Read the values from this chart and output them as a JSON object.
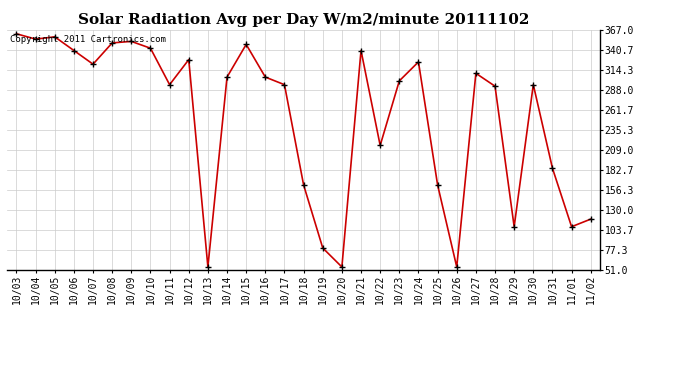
{
  "title": "Solar Radiation Avg per Day W/m2/minute 20111102",
  "copyright_text": "Copyright 2011 Cartronics.com",
  "labels": [
    "10/03",
    "10/04",
    "10/05",
    "10/06",
    "10/07",
    "10/08",
    "10/09",
    "10/10",
    "10/11",
    "10/12",
    "10/13",
    "10/14",
    "10/15",
    "10/16",
    "10/17",
    "10/18",
    "10/19",
    "10/20",
    "10/21",
    "10/22",
    "10/23",
    "10/24",
    "10/25",
    "10/26",
    "10/27",
    "10/28",
    "10/29",
    "10/30",
    "10/31",
    "11/01",
    "11/02"
  ],
  "values": [
    362,
    355,
    358,
    340,
    322,
    350,
    352,
    343,
    295,
    328,
    55,
    305,
    348,
    305,
    295,
    163,
    80,
    55,
    340,
    215,
    300,
    325,
    163,
    55,
    310,
    293,
    108,
    295,
    185,
    108,
    118
  ],
  "line_color": "#cc0000",
  "marker_color": "#000000",
  "bg_color": "#ffffff",
  "grid_color": "#cccccc",
  "ylim_min": 51.0,
  "ylim_max": 367.0,
  "yticks": [
    51.0,
    77.3,
    103.7,
    130.0,
    156.3,
    182.7,
    209.0,
    235.3,
    261.7,
    288.0,
    314.3,
    340.7,
    367.0
  ],
  "title_fontsize": 11,
  "tick_fontsize": 7,
  "copyright_fontsize": 6.5,
  "fig_width": 6.9,
  "fig_height": 3.75
}
